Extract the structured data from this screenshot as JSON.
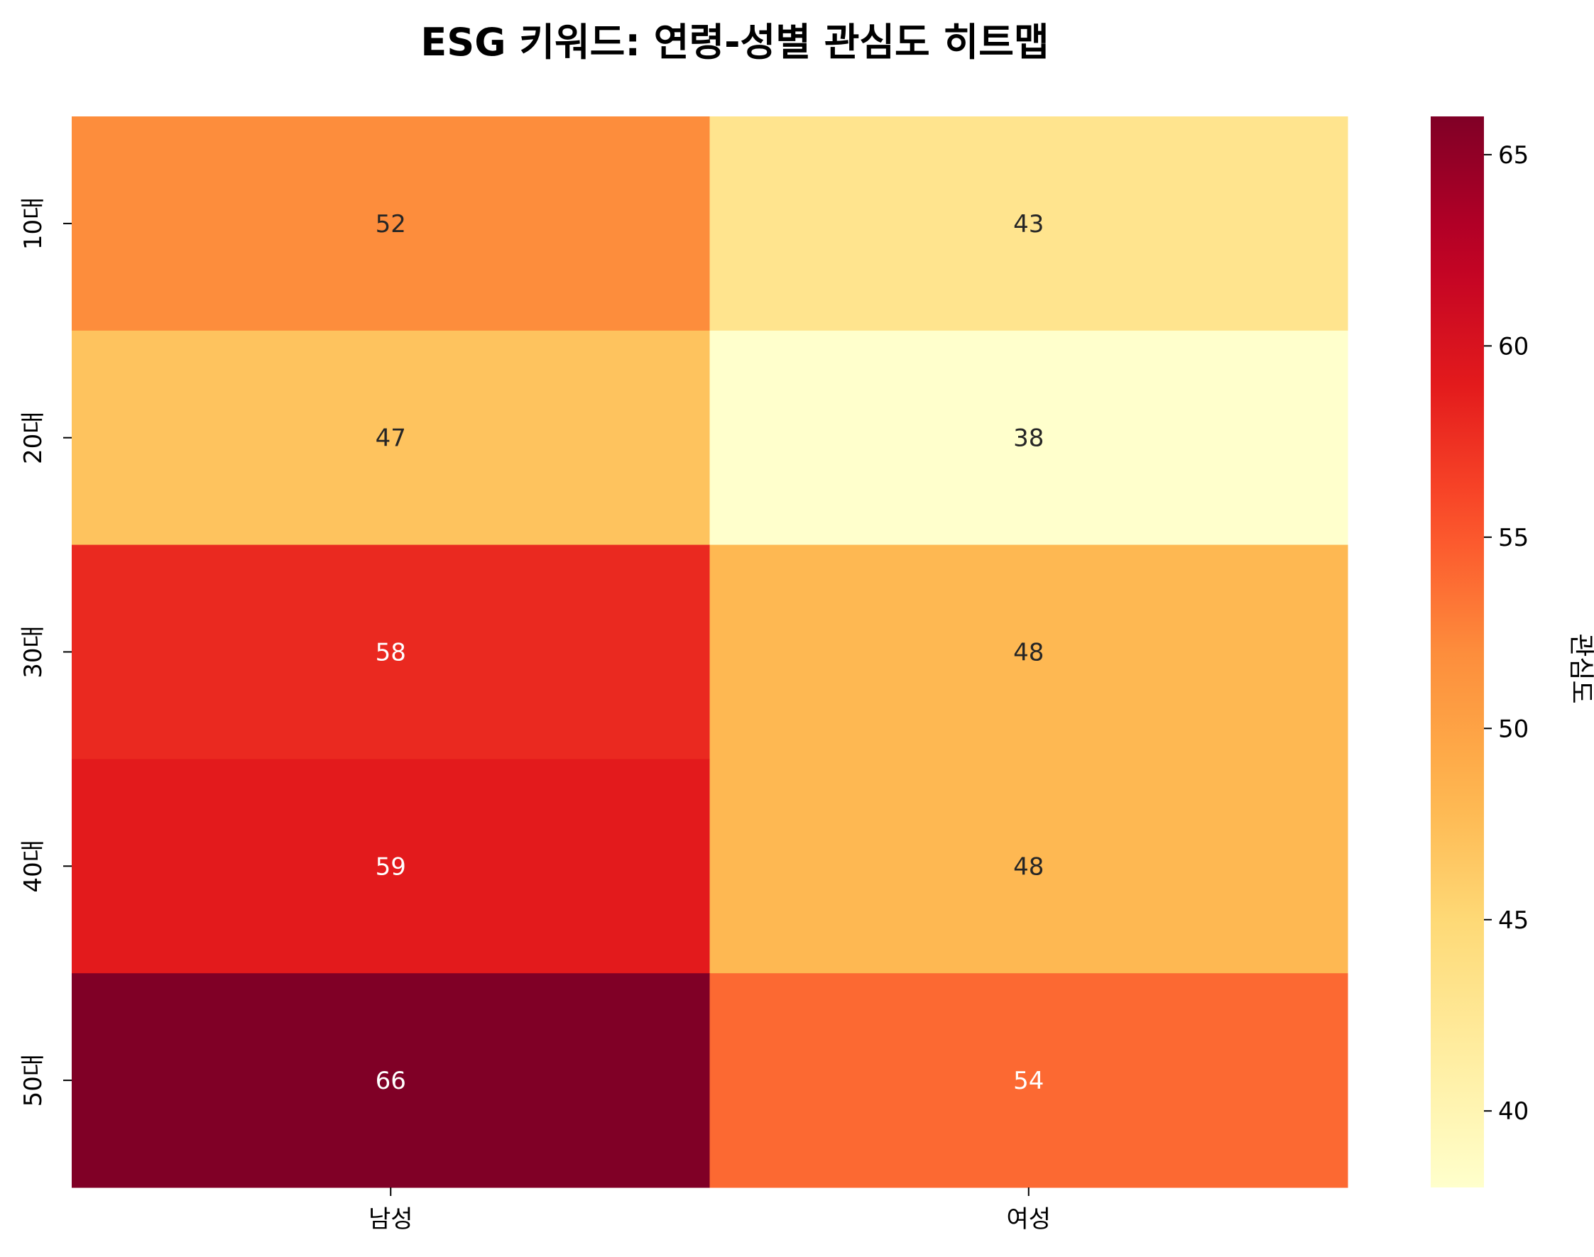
{
  "chart_data": {
    "type": "heatmap",
    "title": "ESG 키워드: 연령-성별 관심도 히트맵",
    "x_categories": [
      "남성",
      "여성"
    ],
    "y_categories": [
      "10대",
      "20대",
      "30대",
      "40대",
      "50대"
    ],
    "values": [
      [
        52,
        43
      ],
      [
        47,
        38
      ],
      [
        58,
        48
      ],
      [
        59,
        48
      ],
      [
        66,
        54
      ]
    ],
    "colormap": "YlOrRd",
    "colorbar": {
      "label": "관심도",
      "range": [
        38,
        66
      ],
      "ticks": [
        40,
        45,
        50,
        55,
        60,
        65
      ]
    },
    "annotations": true
  }
}
